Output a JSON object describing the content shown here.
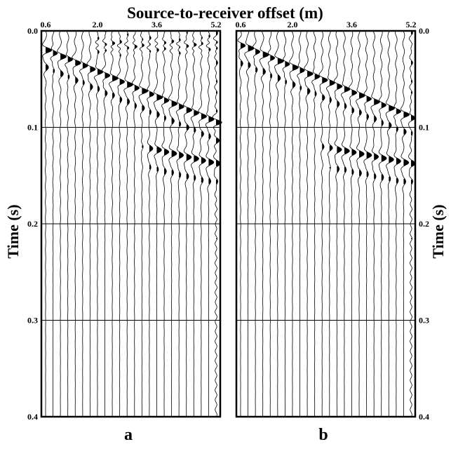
{
  "chart_data": {
    "type": "seismogram",
    "title": "Source-to-receiver offset (m)",
    "xlabel": "Source-to-receiver offset (m)",
    "ylabel": "Time (s)",
    "xlim": [
      0.6,
      5.2
    ],
    "ylim": [
      0.0,
      0.4
    ],
    "x_tick_labels": [
      "0.6",
      "2.0",
      "3.6",
      "5.2"
    ],
    "y_tick_labels": [
      "0.0",
      "0.1",
      "0.2",
      "0.3",
      "0.4"
    ],
    "grid": "horizontal at each time tick",
    "trace_count": 24,
    "panels": [
      {
        "label": "a",
        "events": [
          {
            "name": "direct arrival",
            "t_at_min_offset": 0.02,
            "t_at_max_offset": 0.095
          },
          {
            "name": "reflection",
            "t_start_offset": 3.2,
            "t_at_start": 0.12,
            "t_at_max_offset": 0.138
          },
          {
            "name": "early noise burst",
            "t": 0.015,
            "offset_from": 2.0,
            "offset_to": 5.2
          }
        ]
      },
      {
        "label": "b",
        "events": [
          {
            "name": "direct arrival",
            "t_at_min_offset": 0.015,
            "t_at_max_offset": 0.09
          },
          {
            "name": "reflection",
            "t_start_offset": 2.8,
            "t_at_start": 0.12,
            "t_at_max_offset": 0.138
          }
        ]
      }
    ]
  }
}
